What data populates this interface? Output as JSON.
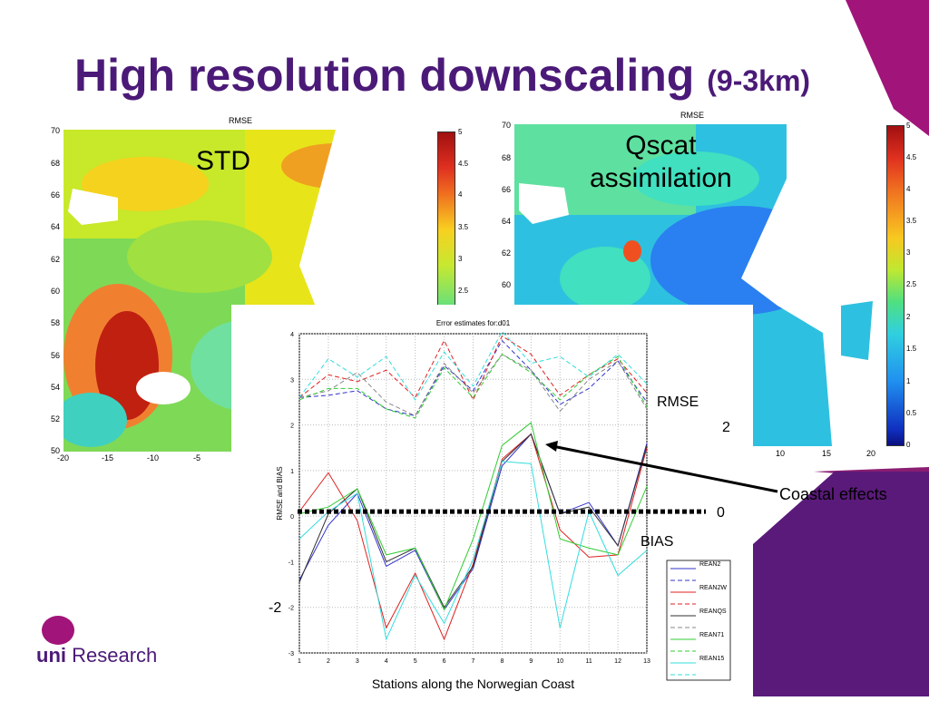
{
  "slide": {
    "title_main": "High resolution downscaling",
    "title_sub": "(9-3km)",
    "colors": {
      "purple": "#4b1a78",
      "magenta": "#a1147a",
      "panel": "#5a1a7a"
    }
  },
  "map_left": {
    "title": "RMSE",
    "label": "STD",
    "y_ticks": [
      "70",
      "68",
      "66",
      "64",
      "62",
      "60",
      "58",
      "56",
      "54",
      "52",
      "50"
    ],
    "x_ticks": [
      "-20",
      "-15",
      "-10",
      "-5"
    ],
    "colorbar_ticks": [
      "5",
      "4.5",
      "4",
      "3.5",
      "3",
      "2.5"
    ]
  },
  "map_right": {
    "title": "RMSE",
    "label_line1": "Qscat",
    "label_line2": "assimilation",
    "y_ticks": [
      "70",
      "68",
      "66",
      "64",
      "62",
      "60"
    ],
    "x_ticks": [
      "10",
      "15",
      "20"
    ],
    "colorbar_ticks": [
      "5",
      "4.5",
      "4",
      "3.5",
      "3",
      "2.5",
      "2",
      "1.5",
      "1",
      "0.5",
      "0"
    ]
  },
  "chart_data": {
    "type": "line",
    "title": "Error estimates for:d01",
    "xlabel": "Stations along the Norwegian Coast",
    "ylabel": "RMSE and BIAS",
    "ylim": [
      -3,
      4
    ],
    "xlim": [
      1,
      13
    ],
    "x": [
      1,
      2,
      3,
      4,
      5,
      6,
      7,
      8,
      9,
      10,
      11,
      12,
      13
    ],
    "y_ticks": [
      "4",
      "3",
      "2",
      "1",
      "0",
      "-1",
      "-2",
      "-3"
    ],
    "x_ticks": [
      "1",
      "2",
      "3",
      "4",
      "5",
      "6",
      "7",
      "8",
      "9",
      "10",
      "11",
      "12",
      "13"
    ],
    "grid": true,
    "legend_position": "bottom-right",
    "series": [
      {
        "name": "REAN2",
        "metric": "BIAS",
        "color": "#3333cc",
        "dash": false,
        "values": [
          -1.4,
          -0.2,
          0.5,
          -1.1,
          -0.75,
          -2.05,
          -1.15,
          1.1,
          1.8,
          0.05,
          0.3,
          -0.65,
          1.6
        ]
      },
      {
        "name": "",
        "metric": "RMSE",
        "color": "#3333cc",
        "dash": true,
        "values": [
          2.6,
          2.65,
          2.75,
          2.35,
          2.2,
          3.3,
          2.75,
          3.85,
          3.2,
          2.45,
          2.8,
          3.4,
          2.5
        ]
      },
      {
        "name": "REAN2W",
        "metric": "BIAS",
        "color": "#e02020",
        "dash": false,
        "values": [
          0.1,
          0.95,
          -0.1,
          -2.45,
          -1.25,
          -2.7,
          -1.05,
          1.25,
          1.8,
          -0.3,
          -0.9,
          -0.85,
          1.5
        ]
      },
      {
        "name": "",
        "metric": "RMSE",
        "color": "#e02020",
        "dash": true,
        "values": [
          2.6,
          3.1,
          2.95,
          3.2,
          2.6,
          3.85,
          2.55,
          3.95,
          3.55,
          2.65,
          3.1,
          3.45,
          2.7
        ]
      },
      {
        "name": "REANQS",
        "metric": "BIAS",
        "color": "#303030",
        "dash": false,
        "values": [
          -1.45,
          0.05,
          0.6,
          -1.0,
          -0.7,
          -2.0,
          -1.1,
          1.2,
          1.8,
          0.05,
          0.2,
          -0.65,
          1.55
        ]
      },
      {
        "name": "",
        "metric": "RMSE",
        "color": "#888888",
        "dash": true,
        "values": [
          2.6,
          2.75,
          3.15,
          2.5,
          2.2,
          3.35,
          2.7,
          3.55,
          3.2,
          2.3,
          3.0,
          3.4,
          2.35
        ]
      },
      {
        "name": "REAN71",
        "metric": "BIAS",
        "color": "#33cc33",
        "dash": false,
        "values": [
          0.05,
          0.2,
          0.6,
          -0.85,
          -0.7,
          -2.05,
          -0.5,
          1.55,
          2.05,
          -0.5,
          -0.7,
          -0.85,
          0.65
        ]
      },
      {
        "name": "",
        "metric": "RMSE",
        "color": "#33cc33",
        "dash": true,
        "values": [
          2.55,
          2.8,
          2.8,
          2.35,
          2.15,
          3.25,
          2.6,
          3.55,
          3.15,
          2.55,
          3.1,
          3.5,
          2.4
        ]
      },
      {
        "name": "REAN15",
        "metric": "BIAS",
        "color": "#33dddd",
        "dash": false,
        "values": [
          -0.5,
          0.1,
          0.5,
          -2.7,
          -1.3,
          -2.35,
          -0.95,
          1.2,
          1.15,
          -2.45,
          0.1,
          -1.3,
          -0.75
        ]
      },
      {
        "name": "",
        "metric": "RMSE",
        "color": "#33dddd",
        "dash": true,
        "values": [
          2.6,
          3.45,
          3.05,
          3.5,
          2.55,
          3.6,
          2.85,
          4.05,
          3.35,
          3.5,
          3.05,
          3.55,
          2.9
        ]
      }
    ],
    "zero_line": 0.1
  },
  "annotations": {
    "rmse": "RMSE",
    "bias": "BIAS",
    "two": "2",
    "zero": "0",
    "minus_two": "-2",
    "coastal": "Coastal effects"
  },
  "logo": {
    "bold": "uni",
    "rest": " Research"
  }
}
